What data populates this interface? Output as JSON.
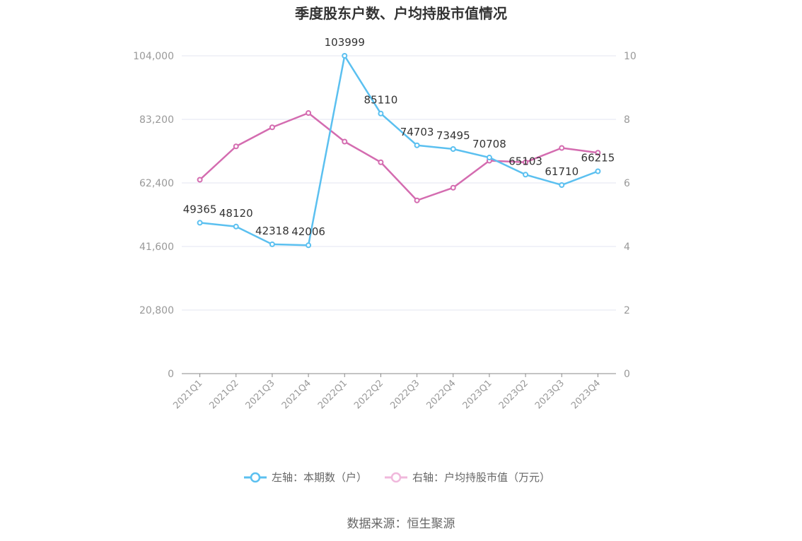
{
  "chart_data": {
    "type": "line",
    "title": "季度股东户数、户均持股市值情况",
    "categories": [
      "2021Q1",
      "2021Q2",
      "2021Q3",
      "2021Q4",
      "2022Q1",
      "2022Q2",
      "2022Q3",
      "2022Q4",
      "2023Q1",
      "2023Q2",
      "2023Q3",
      "2023Q4"
    ],
    "y_left": {
      "min": 0,
      "max": 104000,
      "ticks": [
        "0",
        "20,800",
        "41,600",
        "62,400",
        "83,200",
        "104,000"
      ]
    },
    "y_right": {
      "min": 0,
      "max": 10,
      "ticks": [
        "0",
        "2",
        "4",
        "6",
        "8",
        "10"
      ]
    },
    "grid": true,
    "legend_position": "bottom",
    "series": [
      {
        "name": "左轴：本期数（户）",
        "axis": "left",
        "color": "#5bc0f0",
        "values": [
          49365,
          48120,
          42318,
          42006,
          103999,
          85110,
          74703,
          73495,
          70708,
          65103,
          61710,
          66215
        ],
        "labels": [
          "49365",
          "48120",
          "42318",
          "42006",
          "103999",
          "85110",
          "74703",
          "73495",
          "70708",
          "65103",
          "61710",
          "66215"
        ]
      },
      {
        "name": "右轴：户均持股市值（万元）",
        "axis": "right",
        "color": "#d46cb0",
        "values": [
          6.1,
          7.15,
          7.75,
          8.2,
          7.3,
          6.65,
          5.45,
          5.85,
          6.7,
          6.65,
          7.1,
          6.95
        ]
      }
    ],
    "source": "数据来源：恒生聚源"
  }
}
